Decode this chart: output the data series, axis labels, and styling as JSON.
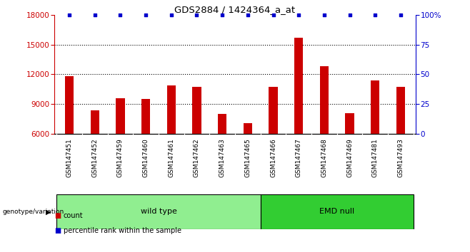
{
  "title": "GDS2884 / 1424364_a_at",
  "samples": [
    "GSM147451",
    "GSM147452",
    "GSM147459",
    "GSM147460",
    "GSM147461",
    "GSM147462",
    "GSM147463",
    "GSM147465",
    "GSM147466",
    "GSM147467",
    "GSM147468",
    "GSM147469",
    "GSM147481",
    "GSM147493"
  ],
  "counts": [
    11850,
    8380,
    9560,
    9480,
    10900,
    10750,
    7980,
    7050,
    10750,
    15700,
    12800,
    8050,
    11350,
    10700
  ],
  "percentile_ranks": [
    100,
    100,
    100,
    100,
    100,
    100,
    100,
    100,
    100,
    100,
    100,
    100,
    100,
    100
  ],
  "groups": [
    {
      "label": "wild type",
      "start": 0,
      "end": 8,
      "color": "#90EE90"
    },
    {
      "label": "EMD null",
      "start": 8,
      "end": 14,
      "color": "#32CD32"
    }
  ],
  "bar_color": "#CC0000",
  "percentile_color": "#0000CC",
  "ylim_left": [
    6000,
    18000
  ],
  "ylim_right": [
    0,
    100
  ],
  "yticks_left": [
    6000,
    9000,
    12000,
    15000,
    18000
  ],
  "yticks_right": [
    0,
    25,
    50,
    75,
    100
  ],
  "grid_dotted_at": [
    9000,
    12000,
    15000
  ],
  "background_color": "#d8d8d8",
  "legend_count_color": "#CC0000",
  "legend_percentile_color": "#0000CC",
  "xlabel_gray": "#d8d8d8"
}
